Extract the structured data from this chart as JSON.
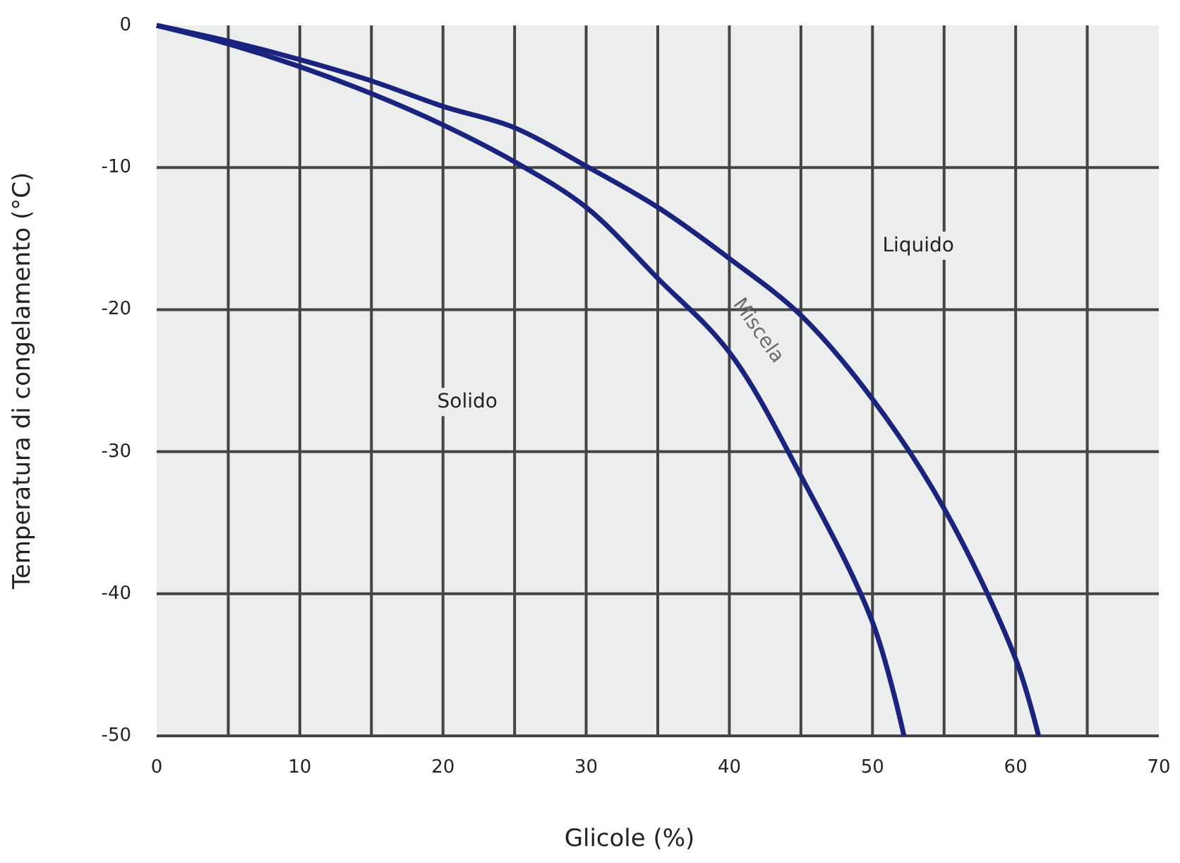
{
  "chart_data": {
    "type": "line",
    "xlabel": "Glicole (%)",
    "ylabel": "Temperatura di congelamento (°C)",
    "xlim": [
      0,
      70
    ],
    "ylim": [
      -50,
      0
    ],
    "xticks": [
      0,
      {
        "value": 5,
        "label": null
      },
      10,
      {
        "value": 15,
        "label": null
      },
      20,
      {
        "value": 25,
        "label": null
      },
      30,
      {
        "value": 35,
        "label": null
      },
      40,
      {
        "value": 45,
        "label": null
      },
      50,
      {
        "value": 55,
        "label": null
      },
      60,
      {
        "value": 65,
        "label": null
      },
      70
    ],
    "yticks": [
      -50,
      -40,
      -30,
      -20,
      -10,
      0
    ],
    "grid": true,
    "marker": "none",
    "line_style": "solid",
    "series": [
      {
        "color": "#1a237e",
        "x": [
          0,
          5,
          10,
          15,
          20,
          25,
          30,
          35,
          40,
          45,
          50,
          55,
          60,
          61.6
        ],
        "values": [
          0,
          -1.1,
          -2.4,
          -3.9,
          -5.7,
          -7.2,
          -9.9,
          -12.8,
          -16.4,
          -20.4,
          -26.3,
          -34,
          -44.6,
          -50
        ]
      },
      {
        "color": "#1a237e",
        "x": [
          0,
          5,
          10,
          15,
          20,
          25,
          30,
          35,
          40,
          45,
          50,
          52.2
        ],
        "values": [
          0,
          -1.3,
          -2.9,
          -4.8,
          -7,
          -9.6,
          -12.8,
          -17.8,
          -23,
          -31.7,
          -42,
          -50
        ]
      }
    ],
    "annotations": [
      "Solido",
      "Liquido",
      "Miscela"
    ]
  }
}
